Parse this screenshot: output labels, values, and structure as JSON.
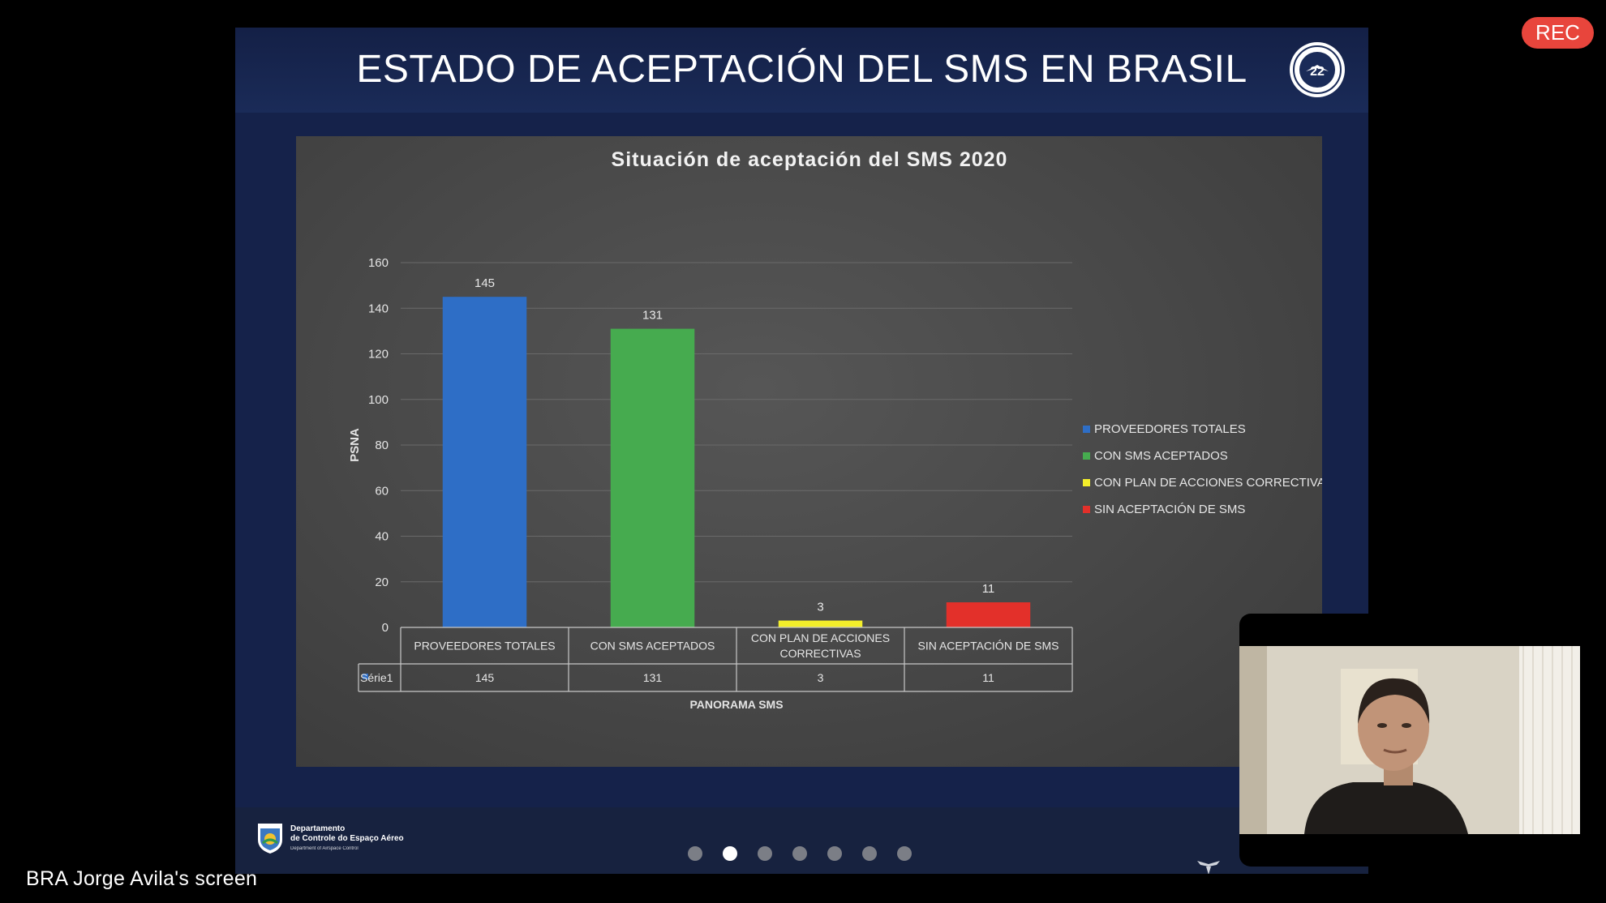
{
  "slide": {
    "title": "ESTADO DE ACEPTACIÓN DEL SMS EN BRASIL",
    "emblem_number": "22",
    "current_slide_index": 1,
    "total_slides": 7
  },
  "chart_data": {
    "type": "bar",
    "title": "Situación de aceptación del SMS 2020",
    "xlabel": "PANORAMA SMS",
    "ylabel": "PSNA",
    "ylim": [
      0,
      160
    ],
    "y_ticks": [
      0,
      20,
      40,
      60,
      80,
      100,
      120,
      140,
      160
    ],
    "categories": [
      "PROVEEDORES TOTALES",
      "CON SMS ACEPTADOS",
      "CON PLAN DE ACCIONES CORRECTIVAS",
      "SIN ACEPTACIÓN DE SMS"
    ],
    "category_lines": [
      [
        "PROVEEDORES TOTALES"
      ],
      [
        "CON SMS ACEPTADOS"
      ],
      [
        "CON PLAN DE ACCIONES",
        "CORRECTIVAS"
      ],
      [
        "SIN ACEPTACIÓN DE SMS"
      ]
    ],
    "values": [
      145,
      131,
      3,
      11
    ],
    "colors": [
      "#2e6ec6",
      "#46ab4f",
      "#f3ee2a",
      "#e3302a"
    ],
    "series_name": "Série1",
    "legend_position": "right",
    "legend": [
      "PROVEEDORES TOTALES",
      "CON SMS ACEPTADOS",
      "CON PLAN DE ACCIONES CORRECTIVAS",
      "SIN ACEPTACIÓN DE SMS"
    ],
    "grid": true,
    "data_table": true
  },
  "footer": {
    "org_line1": "Departamento",
    "org_line2": "de Controle do Espaço Aéreo",
    "org_line3": "Department of Airspace Control"
  },
  "meeting": {
    "rec_label": "REC",
    "screen_label": "BRA Jorge Avila's screen"
  }
}
